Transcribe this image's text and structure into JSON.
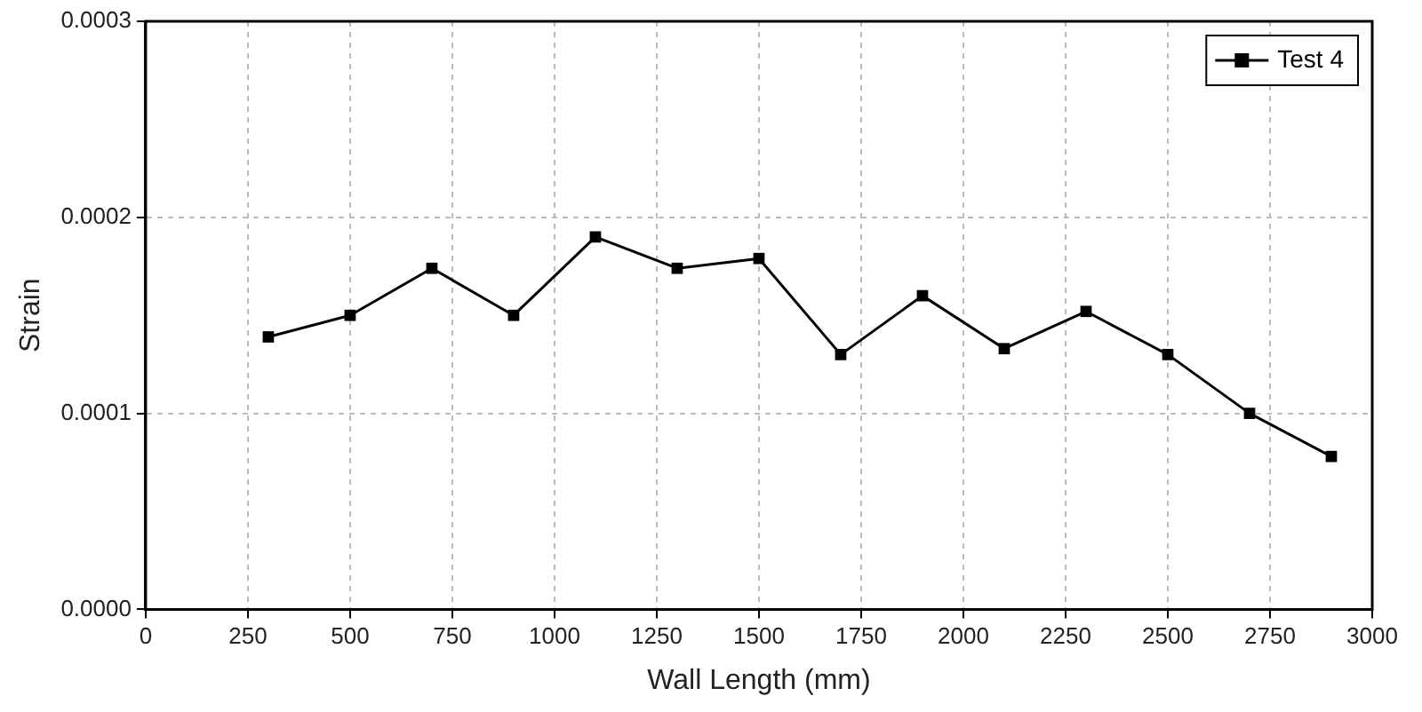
{
  "chart_data": {
    "type": "line",
    "xlabel": "Wall Length (mm)",
    "ylabel": "Strain",
    "x": [
      300,
      500,
      700,
      900,
      1100,
      1300,
      1500,
      1700,
      1900,
      2100,
      2300,
      2500,
      2700,
      2900
    ],
    "series": [
      {
        "name": "Test 4",
        "color": "#000000",
        "values": [
          0.000139,
          0.00015,
          0.000174,
          0.00015,
          0.00019,
          0.000174,
          0.000179,
          0.00013,
          0.00016,
          0.000133,
          0.000152,
          0.00013,
          0.0001,
          7.8e-05
        ]
      }
    ],
    "xlim": [
      0,
      3000
    ],
    "xticks": [
      0,
      250,
      500,
      750,
      1000,
      1250,
      1500,
      1750,
      2000,
      2250,
      2500,
      2750,
      3000
    ],
    "ylim": [
      0,
      0.0003
    ],
    "yticks": [
      {
        "value": 0,
        "label": "0.0000"
      },
      {
        "value": 0.0001,
        "label": "0.0001"
      },
      {
        "value": 0.0002,
        "label": "0.0002"
      },
      {
        "value": 0.0003,
        "label": "0.0003"
      }
    ],
    "grid": true,
    "legend": "top right",
    "marker": "square",
    "line_style": "solid"
  }
}
